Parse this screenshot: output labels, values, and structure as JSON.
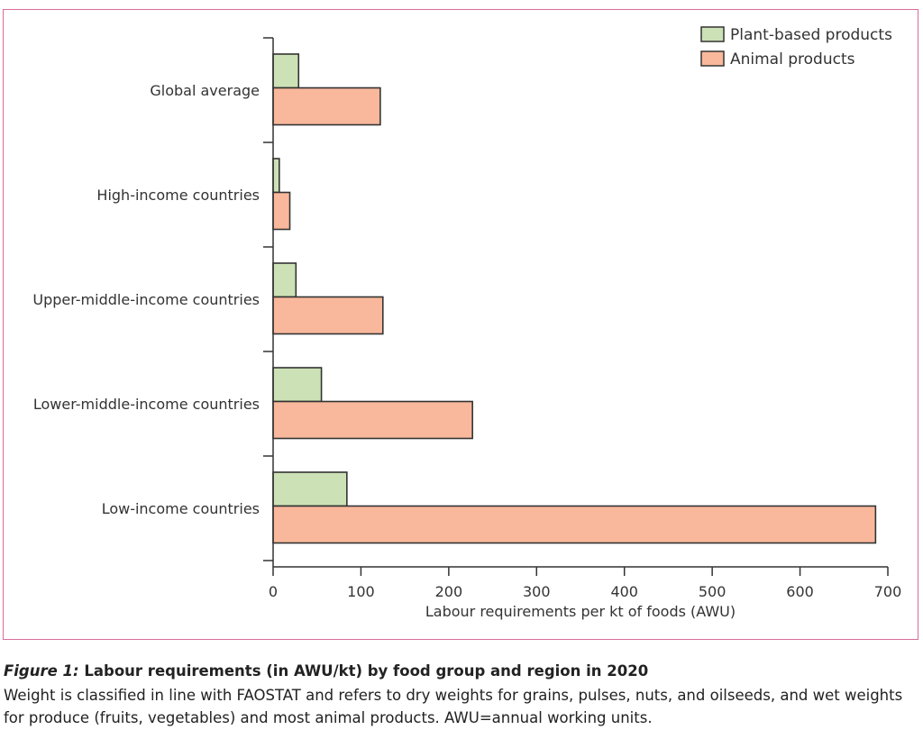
{
  "chart_data": {
    "type": "bar",
    "orientation": "horizontal",
    "categories": [
      "Global average",
      "High-income countries",
      "Upper-middle-income countries",
      "Lower-middle-income countries",
      "Low-income countries"
    ],
    "series": [
      {
        "name": "Plant-based products",
        "values": [
          29,
          7,
          26,
          55,
          84
        ],
        "color": "#cce2b6"
      },
      {
        "name": "Animal products",
        "values": [
          122,
          19,
          125,
          227,
          686
        ],
        "color": "#f9b89c"
      }
    ],
    "xlabel": "Labour requirements per kt of foods (AWU)",
    "ylabel": "",
    "xlim": [
      0,
      700
    ],
    "xticks": [
      0,
      100,
      200,
      300,
      400,
      500,
      600,
      700
    ],
    "grid": false,
    "legend": "top-right"
  },
  "caption": {
    "figure_label": "Figure 1:",
    "title": " Labour requirements (in AWU/kt) by food group and region in 2020",
    "body": "Weight is classified in line with FAOSTAT and refers to dry weights for grains, pulses, nuts, and oilseeds, and wet weights for produce (fruits, vegetables) and most animal products. AWU=annual working units."
  },
  "colors": {
    "frame": "#d86d9a",
    "axis": "#333333"
  }
}
